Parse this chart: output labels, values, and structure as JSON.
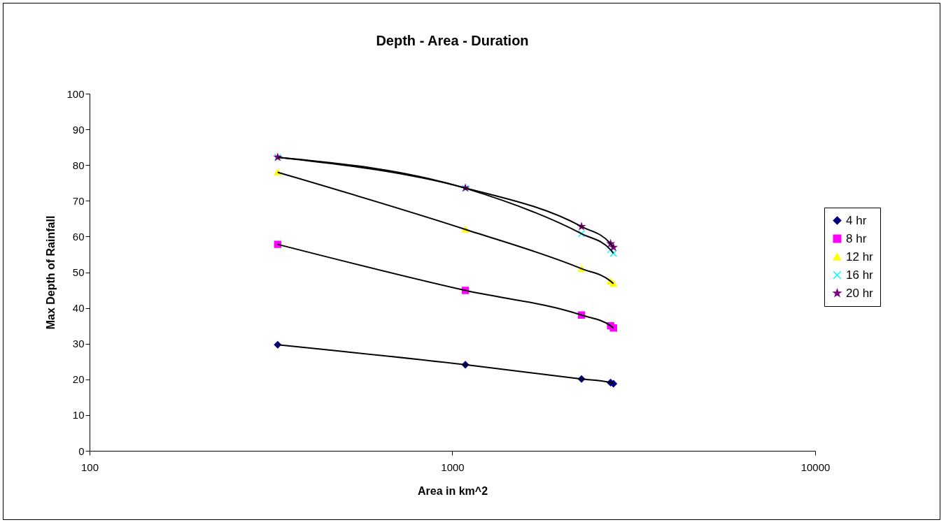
{
  "chart_data": {
    "type": "line",
    "title": "Depth - Area - Duration",
    "xlabel": "Area in km^2",
    "ylabel": "Max Depth of Rainfall",
    "x": [
      330,
      1086,
      2270,
      2730,
      2780
    ],
    "series": [
      {
        "name": "4 hr",
        "color": "#000080",
        "marker": "diamond",
        "values": [
          29.7,
          24.1,
          20.1,
          19.1,
          18.8
        ]
      },
      {
        "name": "8 hr",
        "color": "#ff00ff",
        "marker": "square",
        "values": [
          57.8,
          44.9,
          38.0,
          35.0,
          34.4
        ]
      },
      {
        "name": "12 hr",
        "color": "#ffff00",
        "marker": "triangle",
        "values": [
          78.0,
          62.0,
          51.0,
          47.5,
          46.8
        ]
      },
      {
        "name": "16 hr",
        "color": "#00ffff",
        "marker": "cross",
        "values": [
          82.2,
          73.5,
          60.8,
          56.3,
          55.3
        ]
      },
      {
        "name": "20 hr",
        "color": "#800080",
        "marker": "star",
        "values": [
          82.2,
          73.6,
          62.8,
          58.0,
          57.0
        ]
      }
    ],
    "log": "x",
    "xlim": [
      100,
      10000
    ],
    "xticks": [
      100,
      1000,
      10000
    ],
    "ylim": [
      0,
      100
    ],
    "yticks": [
      0,
      10,
      20,
      30,
      40,
      50,
      60,
      70,
      80,
      90,
      100
    ],
    "grid": false,
    "legend": "right",
    "line_style": "solid"
  }
}
